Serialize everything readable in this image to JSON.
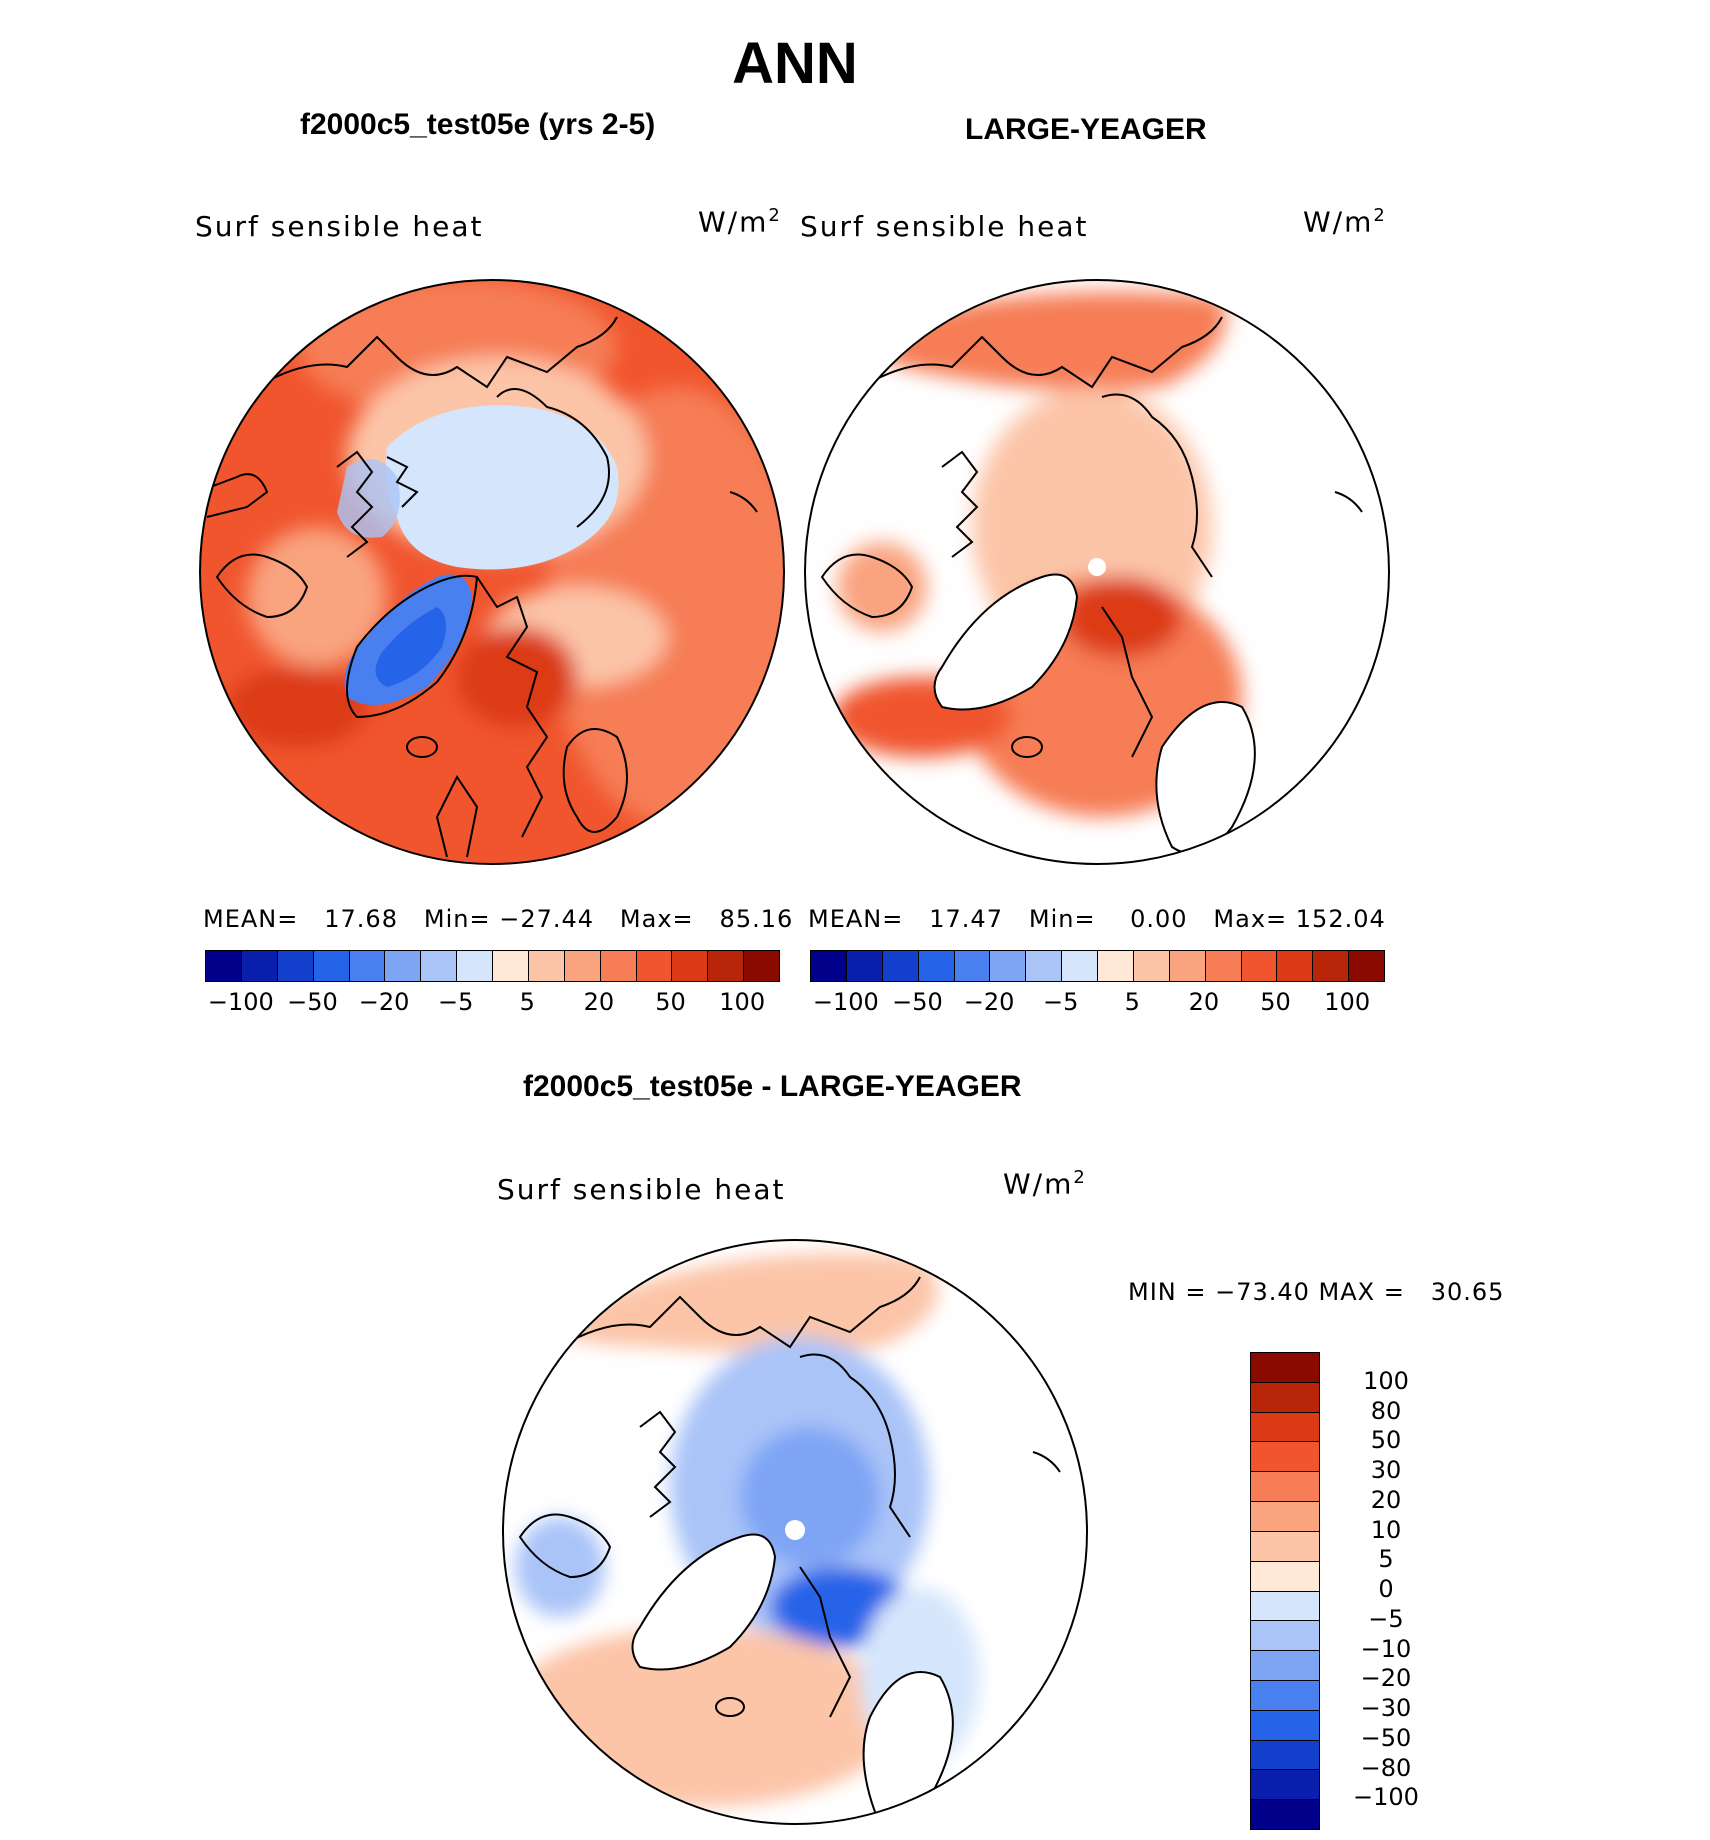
{
  "page_title": "ANN",
  "panels": [
    {
      "title": "f2000c5_test05e (yrs 2-5)",
      "variable": "Surf sensible heat",
      "units": "W/m",
      "units_sup": "2",
      "mean_label": "MEAN=",
      "mean": "17.68",
      "min_label": "Min=",
      "min": "−27.44",
      "max_label": "Max=",
      "max": "85.16"
    },
    {
      "title": "LARGE-YEAGER",
      "variable": "Surf sensible heat",
      "units": "W/m",
      "units_sup": "2",
      "mean_label": "MEAN=",
      "mean": "17.47",
      "min_label": "Min=",
      "min": "0.00",
      "max_label": "Max=",
      "max": "152.04"
    }
  ],
  "top_colorbar": {
    "colors": [
      "#00008b",
      "#0a1fae",
      "#1240cc",
      "#2563e8",
      "#4a7ff0",
      "#7ea4f4",
      "#aac4f8",
      "#d5e6fc",
      "#ffe8d6",
      "#fcc5a8",
      "#f9a37f",
      "#f67d55",
      "#f0552e",
      "#dc3a16",
      "#b82508",
      "#8b0a00"
    ],
    "tick_labels": [
      "−100",
      "−50",
      "−20",
      "−5",
      "5",
      "20",
      "50",
      "100"
    ]
  },
  "difference": {
    "title": "f2000c5_test05e - LARGE-YEAGER",
    "variable": "Surf sensible heat",
    "units": "W/m",
    "units_sup": "2",
    "min_max_text": "MIN = −73.40 MAX =   30.65",
    "colorbar": {
      "colors": [
        "#8b0a00",
        "#b82508",
        "#dc3a16",
        "#f0552e",
        "#f67d55",
        "#f9a37f",
        "#fcc5a8",
        "#ffe8d6",
        "#d5e6fc",
        "#aac4f8",
        "#7ea4f4",
        "#4a7ff0",
        "#2563e8",
        "#1240cc",
        "#0a1fae",
        "#00008b"
      ],
      "tick_labels": [
        "100",
        "80",
        "50",
        "30",
        "20",
        "10",
        "5",
        "0",
        "−5",
        "−10",
        "−20",
        "−30",
        "−50",
        "−80",
        "−100"
      ]
    }
  }
}
